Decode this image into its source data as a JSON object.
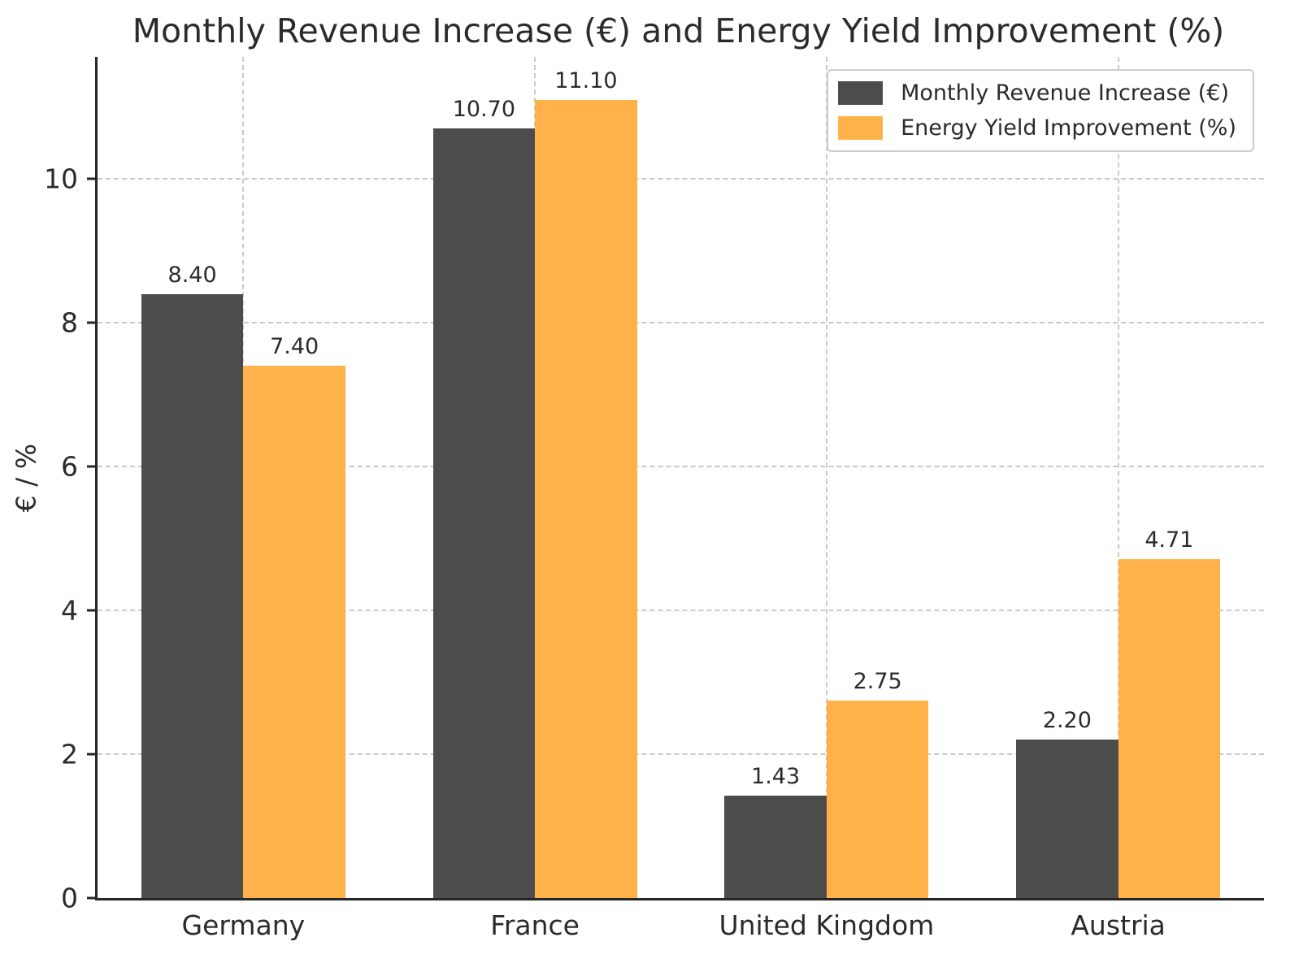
{
  "chart_data": {
    "type": "bar",
    "title": "Monthly Revenue Increase (€) and Energy Yield Improvement (%)",
    "categories": [
      "Germany",
      "France",
      "United Kingdom",
      "Austria"
    ],
    "series": [
      {
        "name": "Monthly Revenue Increase (€)",
        "color": "#4c4c4c",
        "values": [
          8.4,
          10.7,
          1.43,
          2.2
        ],
        "value_labels": [
          "8.40",
          "10.70",
          "1.43",
          "2.20"
        ]
      },
      {
        "name": "Energy Yield Improvement (%)",
        "color": "#ffb24a",
        "values": [
          7.4,
          11.1,
          2.75,
          4.71
        ],
        "value_labels": [
          "7.40",
          "11.10",
          "2.75",
          "4.71"
        ]
      }
    ],
    "xlabel": "",
    "ylabel": "€ / %",
    "yticks": [
      0,
      2,
      4,
      6,
      8,
      10
    ],
    "ylim": [
      0,
      11.7
    ],
    "bar_width_fraction": 0.35,
    "grid": true,
    "grid_style": "dashed",
    "grid_color": "#c9c9c9",
    "axis_color": "#262626",
    "text_color": "#2b2b2b",
    "background_color": "#ffffff",
    "legend_position": "upper right"
  }
}
